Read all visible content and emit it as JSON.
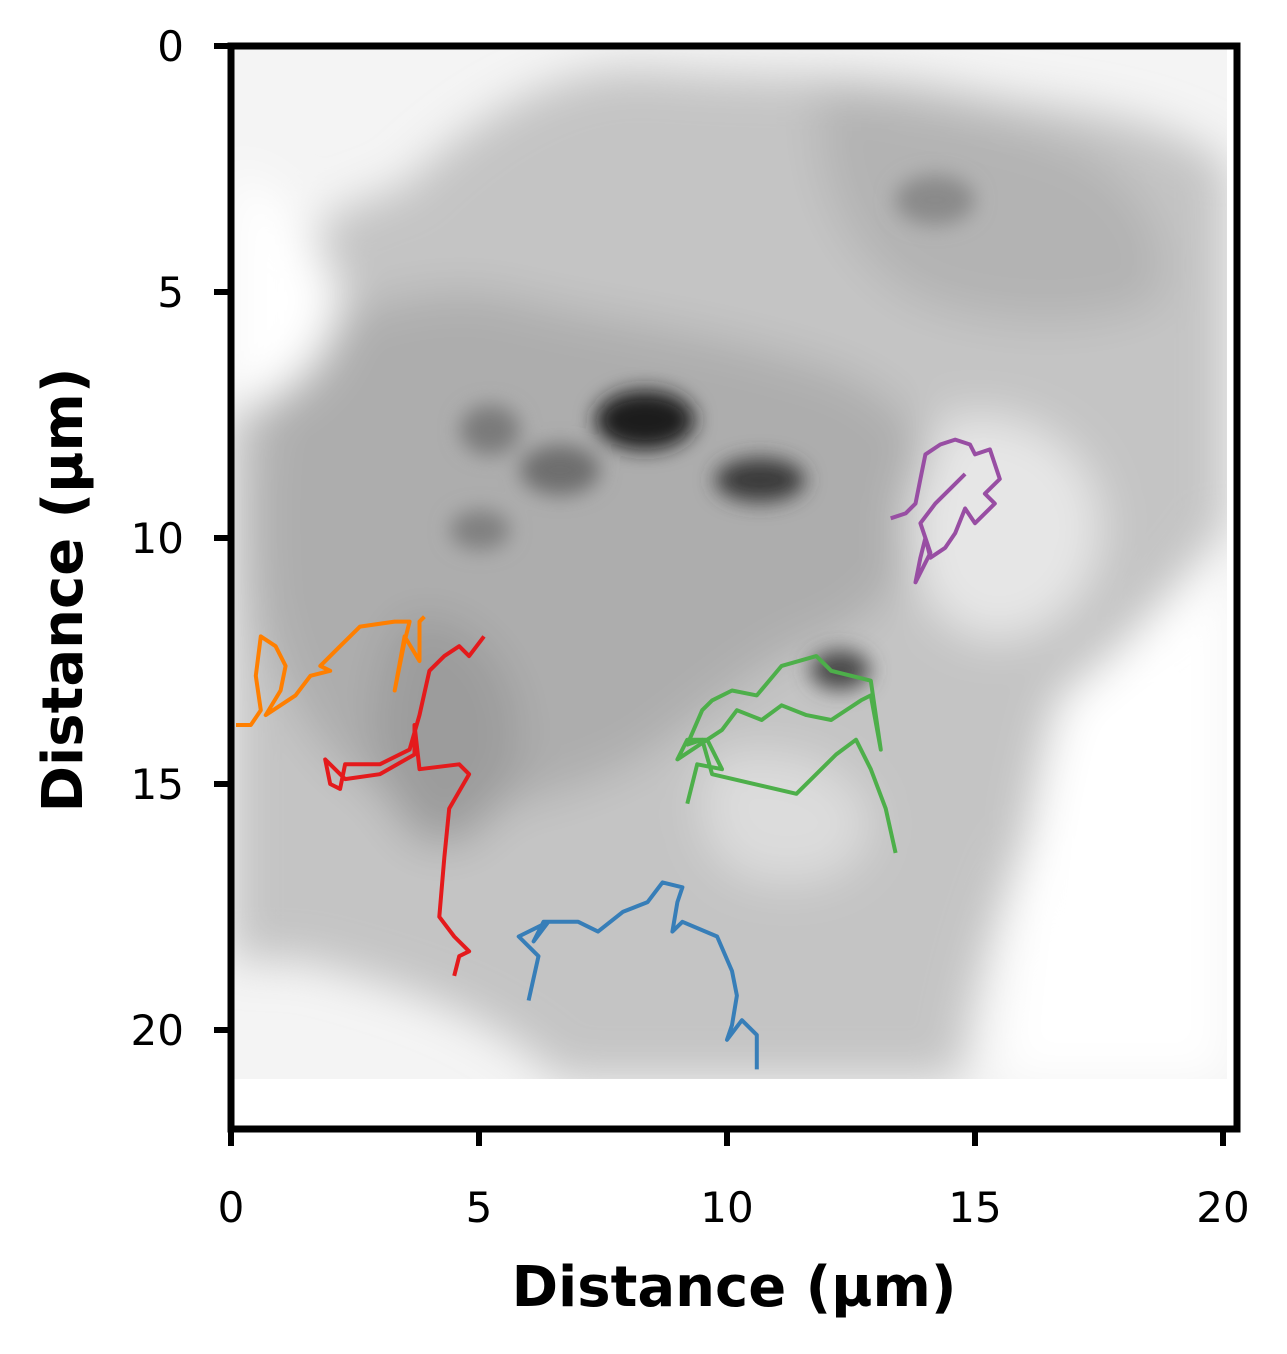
{
  "chart_data": {
    "type": "line",
    "background": "grayscale fluorescence micrograph of a cell (inverted, dark = bright signal)",
    "xlabel": "Distance (µm)",
    "ylabel": "Distance (µm)",
    "xlim": [
      0,
      20.3
    ],
    "ylim": [
      22,
      0
    ],
    "y_inverted": true,
    "image_extent": {
      "x": [
        0,
        20.1
      ],
      "y": [
        0,
        21
      ]
    },
    "xticks": [
      0,
      5,
      10,
      15,
      20
    ],
    "xtick_labels": [
      "0",
      "5",
      "10",
      "15",
      "20"
    ],
    "yticks": [
      0,
      5,
      10,
      15,
      20
    ],
    "ytick_labels": [
      "0",
      "5",
      "10",
      "15",
      "20"
    ],
    "grid": false,
    "legend": "none",
    "series": [
      {
        "color": "#ff7f00",
        "points": [
          [
            0.1,
            13.8
          ],
          [
            0.4,
            13.8
          ],
          [
            0.6,
            13.5
          ],
          [
            0.5,
            12.8
          ],
          [
            0.6,
            12.0
          ],
          [
            0.9,
            12.2
          ],
          [
            1.1,
            12.6
          ],
          [
            1.0,
            13.1
          ],
          [
            0.7,
            13.6
          ],
          [
            1.3,
            13.2
          ],
          [
            1.6,
            12.8
          ],
          [
            2.0,
            12.7
          ],
          [
            1.8,
            12.6
          ],
          [
            2.2,
            12.2
          ],
          [
            2.6,
            11.8
          ],
          [
            3.3,
            11.7
          ],
          [
            3.6,
            11.7
          ],
          [
            3.5,
            12.1
          ],
          [
            3.3,
            13.1
          ],
          [
            3.5,
            12.0
          ],
          [
            3.8,
            12.5
          ],
          [
            3.8,
            11.7
          ],
          [
            3.9,
            11.6
          ]
        ]
      },
      {
        "color": "#e41a1c",
        "points": [
          [
            5.1,
            12.0
          ],
          [
            4.8,
            12.4
          ],
          [
            4.6,
            12.2
          ],
          [
            4.3,
            12.4
          ],
          [
            4.0,
            12.7
          ],
          [
            3.8,
            13.6
          ],
          [
            3.6,
            14.3
          ],
          [
            3.0,
            14.6
          ],
          [
            2.3,
            14.6
          ],
          [
            2.2,
            15.1
          ],
          [
            2.0,
            15.0
          ],
          [
            1.9,
            14.5
          ],
          [
            2.3,
            14.9
          ],
          [
            3.0,
            14.8
          ],
          [
            3.7,
            14.4
          ],
          [
            3.7,
            13.8
          ],
          [
            3.8,
            14.7
          ],
          [
            4.6,
            14.6
          ],
          [
            4.8,
            14.8
          ],
          [
            4.4,
            15.5
          ],
          [
            4.3,
            16.5
          ],
          [
            4.2,
            17.7
          ],
          [
            4.5,
            18.1
          ],
          [
            4.8,
            18.4
          ],
          [
            4.6,
            18.5
          ],
          [
            4.5,
            18.9
          ]
        ]
      },
      {
        "color": "#377eb8",
        "points": [
          [
            6.0,
            19.4
          ],
          [
            6.2,
            18.5
          ],
          [
            5.8,
            18.1
          ],
          [
            6.4,
            17.8
          ],
          [
            6.1,
            18.2
          ],
          [
            6.3,
            17.8
          ],
          [
            7.0,
            17.8
          ],
          [
            7.4,
            18.0
          ],
          [
            7.9,
            17.6
          ],
          [
            8.4,
            17.4
          ],
          [
            8.7,
            17.0
          ],
          [
            9.1,
            17.1
          ],
          [
            9.0,
            17.4
          ],
          [
            8.9,
            18.0
          ],
          [
            9.1,
            17.8
          ],
          [
            9.8,
            18.1
          ],
          [
            10.1,
            18.8
          ],
          [
            10.2,
            19.3
          ],
          [
            10.1,
            19.9
          ],
          [
            10.0,
            20.2
          ],
          [
            10.3,
            19.8
          ],
          [
            10.6,
            20.1
          ],
          [
            10.6,
            20.8
          ]
        ]
      },
      {
        "color": "#4daf4a",
        "points": [
          [
            9.2,
            15.4
          ],
          [
            9.4,
            14.6
          ],
          [
            9.9,
            14.7
          ],
          [
            9.6,
            14.1
          ],
          [
            9.2,
            14.1
          ],
          [
            9.0,
            14.5
          ],
          [
            9.6,
            14.1
          ],
          [
            9.9,
            13.9
          ],
          [
            10.2,
            13.5
          ],
          [
            10.7,
            13.7
          ],
          [
            11.1,
            13.4
          ],
          [
            11.6,
            13.6
          ],
          [
            12.1,
            13.7
          ],
          [
            12.7,
            13.3
          ],
          [
            12.9,
            13.2
          ],
          [
            13.1,
            14.3
          ],
          [
            12.9,
            12.9
          ],
          [
            12.1,
            12.7
          ],
          [
            11.8,
            12.4
          ],
          [
            11.1,
            12.6
          ],
          [
            10.6,
            13.2
          ],
          [
            10.1,
            13.1
          ],
          [
            9.7,
            13.3
          ],
          [
            9.5,
            13.5
          ],
          [
            9.2,
            14.2
          ],
          [
            9.5,
            14.1
          ],
          [
            9.7,
            14.8
          ],
          [
            11.4,
            15.2
          ],
          [
            12.2,
            14.4
          ],
          [
            12.6,
            14.1
          ],
          [
            12.9,
            14.7
          ],
          [
            13.2,
            15.5
          ],
          [
            13.4,
            16.4
          ]
        ]
      },
      {
        "color": "#984ea3",
        "points": [
          [
            13.3,
            9.6
          ],
          [
            13.6,
            9.5
          ],
          [
            13.8,
            9.3
          ],
          [
            13.9,
            8.8
          ],
          [
            14.0,
            8.3
          ],
          [
            14.3,
            8.1
          ],
          [
            14.6,
            8.0
          ],
          [
            14.9,
            8.1
          ],
          [
            15.0,
            8.3
          ],
          [
            15.3,
            8.2
          ],
          [
            15.5,
            8.8
          ],
          [
            15.2,
            9.1
          ],
          [
            15.4,
            9.3
          ],
          [
            15.0,
            9.7
          ],
          [
            14.8,
            9.4
          ],
          [
            14.6,
            9.9
          ],
          [
            14.4,
            10.2
          ],
          [
            14.1,
            10.4
          ],
          [
            14.0,
            10.0
          ],
          [
            13.9,
            10.4
          ],
          [
            13.8,
            10.9
          ],
          [
            14.1,
            10.3
          ],
          [
            13.9,
            9.7
          ],
          [
            14.2,
            9.3
          ],
          [
            14.5,
            9.0
          ],
          [
            14.8,
            8.7
          ]
        ]
      }
    ]
  }
}
